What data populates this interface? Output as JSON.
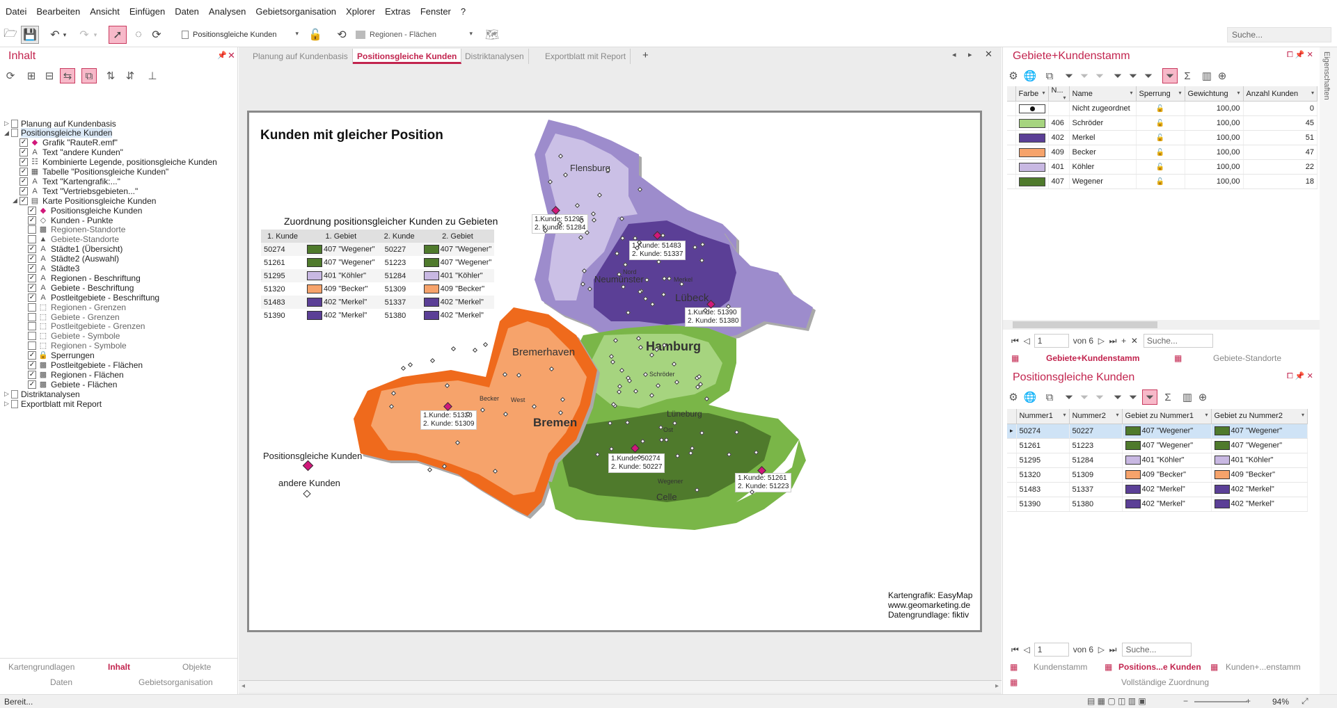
{
  "menu": [
    "Datei",
    "Bearbeiten",
    "Ansicht",
    "Einfügen",
    "Daten",
    "Analysen",
    "Gebietsorganisation",
    "Xplorer",
    "Extras",
    "Fenster",
    "?"
  ],
  "toolbar": {
    "page_combo": "Positionsgleiche Kunden",
    "layer_combo": "Regionen - Flächen",
    "search_placeholder": "Suche..."
  },
  "left": {
    "title": "Inhalt",
    "tree": [
      {
        "label": "Planung auf Kundenbasis",
        "kind": "doc",
        "expander": "▷",
        "check": "",
        "indent": 0
      },
      {
        "label": "Positionsgleiche Kunden",
        "kind": "doc",
        "expander": "◢",
        "check": "",
        "indent": 0,
        "selected": true
      },
      {
        "label": "Grafik \"RauteR.emf\"",
        "kind": "item",
        "check": "✓",
        "icon": "◆",
        "indent": 1
      },
      {
        "label": "Text \"andere Kunden\"",
        "kind": "item",
        "check": "✓",
        "icon": "A",
        "indent": 1
      },
      {
        "label": "Kombinierte Legende, positionsgleiche Kunden",
        "kind": "item",
        "check": "✓",
        "icon": "☷",
        "indent": 1
      },
      {
        "label": "Tabelle \"Positionsgleiche Kunden\"",
        "kind": "item",
        "check": "✓",
        "icon": "▦",
        "indent": 1
      },
      {
        "label": "Text \"Kartengrafik:...\"",
        "kind": "item",
        "check": "✓",
        "icon": "A",
        "indent": 1
      },
      {
        "label": "Text \"Vertriebsgebieten...\"",
        "kind": "item",
        "check": "✓",
        "icon": "A",
        "indent": 1
      },
      {
        "label": "Karte Positionsgleiche Kunden",
        "kind": "item",
        "expander": "◢",
        "check": "✓",
        "icon": "▤",
        "indent": 1
      },
      {
        "label": "Positionsgleiche Kunden",
        "kind": "item",
        "check": "✓",
        "icon": "◆",
        "indent": 2
      },
      {
        "label": "Kunden - Punkte",
        "kind": "item",
        "check": "✓",
        "icon": "◇",
        "indent": 2
      },
      {
        "label": "Regionen-Standorte",
        "kind": "item",
        "check": "",
        "icon": "▩",
        "indent": 2,
        "gray": true
      },
      {
        "label": "Gebiete-Standorte",
        "kind": "item",
        "check": "",
        "icon": "▲",
        "indent": 2,
        "gray": true
      },
      {
        "label": "Städte1 (Übersicht)",
        "kind": "item",
        "check": "✓",
        "icon": "A",
        "indent": 2
      },
      {
        "label": "Städte2 (Auswahl)",
        "kind": "item",
        "check": "✓",
        "icon": "A",
        "indent": 2
      },
      {
        "label": "Städte3",
        "kind": "item",
        "check": "✓",
        "icon": "A",
        "indent": 2
      },
      {
        "label": "Regionen - Beschriftung",
        "kind": "item",
        "check": "✓",
        "icon": "A",
        "indent": 2
      },
      {
        "label": "Gebiete - Beschriftung",
        "kind": "item",
        "check": "✓",
        "icon": "A",
        "indent": 2
      },
      {
        "label": "Postleitgebiete - Beschriftung",
        "kind": "item",
        "check": "✓",
        "icon": "A",
        "indent": 2
      },
      {
        "label": "Regionen - Grenzen",
        "kind": "item",
        "check": "",
        "icon": "⬚",
        "indent": 2,
        "gray": true
      },
      {
        "label": "Gebiete - Grenzen",
        "kind": "item",
        "check": "",
        "icon": "⬚",
        "indent": 2,
        "gray": true
      },
      {
        "label": "Postleitgebiete - Grenzen",
        "kind": "item",
        "check": "",
        "icon": "⬚",
        "indent": 2,
        "gray": true
      },
      {
        "label": "Gebiete - Symbole",
        "kind": "item",
        "check": "",
        "icon": "⬚",
        "indent": 2,
        "gray": true
      },
      {
        "label": "Regionen - Symbole",
        "kind": "item",
        "check": "",
        "icon": "⬚",
        "indent": 2,
        "gray": true
      },
      {
        "label": "Sperrungen",
        "kind": "item",
        "check": "✓",
        "icon": "🔒",
        "indent": 2
      },
      {
        "label": "Postleitgebiete - Flächen",
        "kind": "item",
        "check": "✓",
        "icon": "▩",
        "indent": 2
      },
      {
        "label": "Regionen - Flächen",
        "kind": "item",
        "check": "✓",
        "icon": "▩",
        "indent": 2
      },
      {
        "label": "Gebiete - Flächen",
        "kind": "item",
        "check": "✓",
        "icon": "▩",
        "indent": 2
      },
      {
        "label": "Distriktanalysen",
        "kind": "doc",
        "expander": "▷",
        "check": "",
        "indent": 0
      },
      {
        "label": "Exportblatt mit Report",
        "kind": "doc",
        "expander": "▷",
        "check": "",
        "indent": 0
      }
    ],
    "tabs_row1": [
      "Kartengrundlagen",
      "Inhalt",
      "Objekte"
    ],
    "tabs_row2": [
      "Daten",
      "Gebietsorganisation"
    ]
  },
  "doc_tabs": [
    "Planung auf Kundenbasis",
    "Positionsgleiche Kunden",
    "Distriktanalysen",
    "Exportblatt mit Report"
  ],
  "doc_tab_add": "+",
  "map": {
    "title": "Kunden mit gleicher Position",
    "table_title": "Zuordnung positionsgleicher Kunden zu Gebieten",
    "table_headers": [
      "1. Kunde",
      "1. Gebiet",
      "2. Kunde",
      "2. Gebiet"
    ],
    "table_rows": [
      {
        "k1": "50274",
        "g1": "407 \"Wegener\"",
        "c1": "#4f7a2c",
        "k2": "50227",
        "g2": "407 \"Wegener\"",
        "c2": "#4f7a2c"
      },
      {
        "k1": "51261",
        "g1": "407 \"Wegener\"",
        "c1": "#4f7a2c",
        "k2": "51223",
        "g2": "407 \"Wegener\"",
        "c2": "#4f7a2c"
      },
      {
        "k1": "51295",
        "g1": "401 \"Köhler\"",
        "c1": "#c8b8e2",
        "k2": "51284",
        "g2": "401 \"Köhler\"",
        "c2": "#c8b8e2"
      },
      {
        "k1": "51320",
        "g1": "409 \"Becker\"",
        "c1": "#f6a36b",
        "k2": "51309",
        "g2": "409 \"Becker\"",
        "c2": "#f6a36b"
      },
      {
        "k1": "51483",
        "g1": "402 \"Merkel\"",
        "c1": "#5b3f96",
        "k2": "51337",
        "g2": "402 \"Merkel\"",
        "c2": "#5b3f96"
      },
      {
        "k1": "51390",
        "g1": "402 \"Merkel\"",
        "c1": "#5b3f96",
        "k2": "51380",
        "g2": "402 \"Merkel\"",
        "c2": "#5b3f96"
      }
    ],
    "legend": {
      "pos_label": "Positionsgleiche Kunden",
      "other_label": "andere Kunden"
    },
    "cities": {
      "flensburg": "Flensburg",
      "neumuenster": "Neumünster",
      "luebeck": "Lübeck",
      "hamburg": "Hamburg",
      "bremerhaven": "Bremerhaven",
      "bremen": "Bremen",
      "lueneburg": "Lüneburg",
      "celle": "Celle",
      "nord": "Nord",
      "merkel": "Merkel",
      "west": "West",
      "becker": "Becker",
      "schroeder": "Schröder",
      "ost": "Ost",
      "wegener": "Wegener"
    },
    "pair_labels": [
      {
        "a": "1.Kunde: 51295",
        "b": "2. Kunde: 51284"
      },
      {
        "a": "1.Kunde: 51483",
        "b": "2. Kunde: 51337"
      },
      {
        "a": "1.Kunde: 51390",
        "b": "2. Kunde: 51380"
      },
      {
        "a": "1.Kunde: 51320",
        "b": "2. Kunde: 51309"
      },
      {
        "a": "1.Kunde: 50274",
        "b": "2. Kunde: 50227"
      },
      {
        "a": "1.Kunde: 51261",
        "b": "2. Kunde: 51223"
      }
    ],
    "credits": [
      "Kartengrafik: EasyMap",
      "www.geomarketing.de",
      "Datengrundlage: fiktiv"
    ]
  },
  "right_top": {
    "title": "Gebiete+Kundenstamm",
    "headers": [
      "Farbe",
      "N...",
      "Name",
      "Sperrung",
      "Gewichtung",
      "Anzahl Kunden"
    ],
    "rows": [
      {
        "color": "#ffffff",
        "dot": true,
        "num": "",
        "name": "Nicht zugeordnet",
        "gew": "100,00",
        "anz": "0"
      },
      {
        "color": "#a6d47f",
        "num": "406",
        "name": "Schröder",
        "gew": "100,00",
        "anz": "45"
      },
      {
        "color": "#5b3f96",
        "num": "402",
        "name": "Merkel",
        "gew": "100,00",
        "anz": "51"
      },
      {
        "color": "#f6a36b",
        "num": "409",
        "name": "Becker",
        "gew": "100,00",
        "anz": "47"
      },
      {
        "color": "#c8b8e2",
        "num": "401",
        "name": "Köhler",
        "gew": "100,00",
        "anz": "22"
      },
      {
        "color": "#4f7a2c",
        "num": "407",
        "name": "Wegener",
        "gew": "100,00",
        "anz": "18"
      }
    ],
    "nav_value": "1",
    "nav_of": "von 6",
    "search_placeholder": "Suche...",
    "tabs": [
      "Gebiete+Kundenstamm",
      "Gebiete-Standorte"
    ]
  },
  "right_bottom": {
    "title": "Positionsgleiche Kunden",
    "headers": [
      "Nummer1",
      "Nummer2",
      "Gebiet zu Nummer1",
      "Gebiet zu Nummer2"
    ],
    "rows": [
      {
        "n1": "50274",
        "n2": "50227",
        "g1": "407 \"Wegener\"",
        "c1": "#4f7a2c",
        "g2": "407 \"Wegener\"",
        "c2": "#4f7a2c",
        "sel": true
      },
      {
        "n1": "51261",
        "n2": "51223",
        "g1": "407 \"Wegener\"",
        "c1": "#4f7a2c",
        "g2": "407 \"Wegener\"",
        "c2": "#4f7a2c"
      },
      {
        "n1": "51295",
        "n2": "51284",
        "g1": "401 \"Köhler\"",
        "c1": "#c8b8e2",
        "g2": "401 \"Köhler\"",
        "c2": "#c8b8e2"
      },
      {
        "n1": "51320",
        "n2": "51309",
        "g1": "409 \"Becker\"",
        "c1": "#f6a36b",
        "g2": "409 \"Becker\"",
        "c2": "#f6a36b"
      },
      {
        "n1": "51483",
        "n2": "51337",
        "g1": "402 \"Merkel\"",
        "c1": "#5b3f96",
        "g2": "402 \"Merkel\"",
        "c2": "#5b3f96"
      },
      {
        "n1": "51390",
        "n2": "51380",
        "g1": "402 \"Merkel\"",
        "c1": "#5b3f96",
        "g2": "402 \"Merkel\"",
        "c2": "#5b3f96"
      }
    ],
    "nav_value": "1",
    "nav_of": "von 6",
    "search_placeholder": "Suche...",
    "tabs": [
      "Kundenstamm",
      "Positions...e Kunden",
      "Kunden+...enstamm"
    ],
    "tab_row2": "Vollständige Zuordnung"
  },
  "side_tab": "Eigenschaften",
  "status": {
    "text": "Bereit...",
    "zoom": "94%"
  }
}
